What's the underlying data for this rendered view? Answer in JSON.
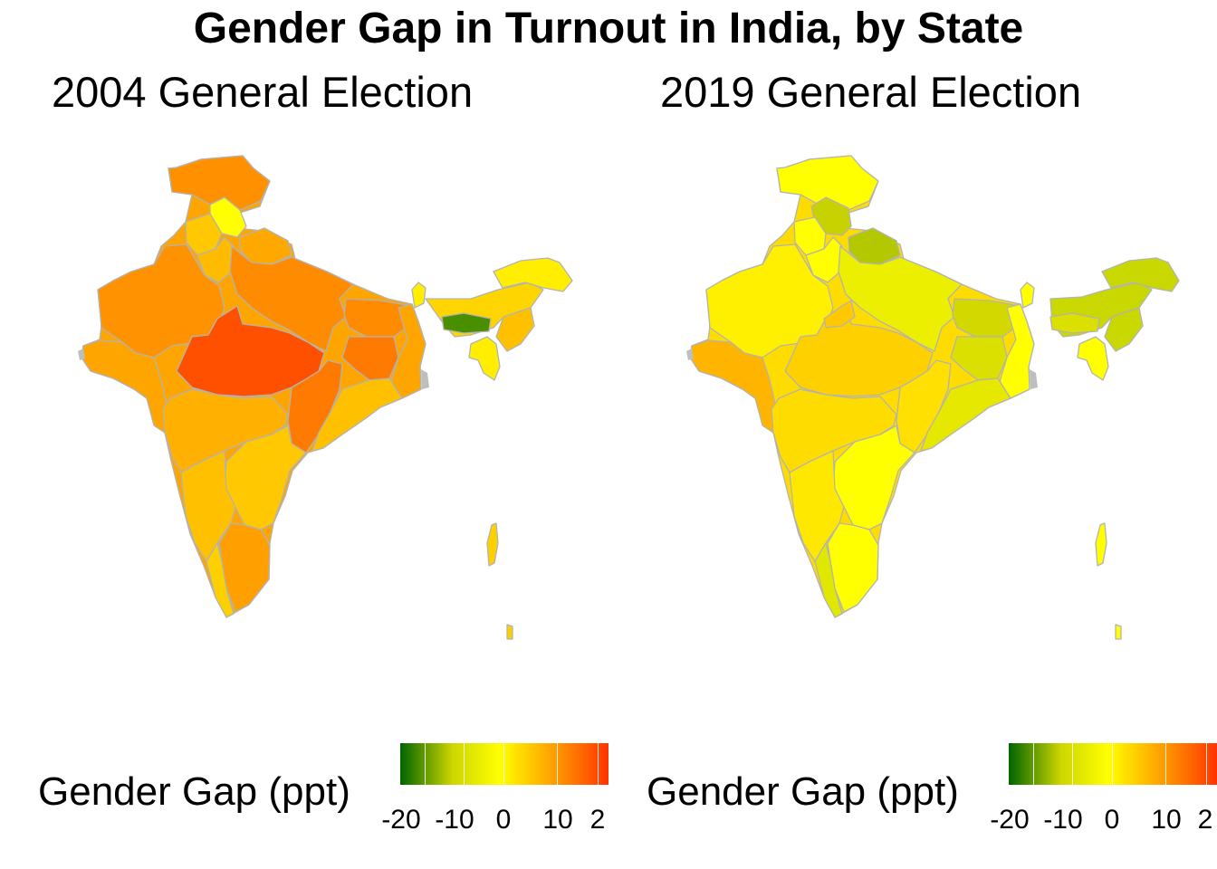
{
  "title": "Gender Gap in Turnout in India, by State",
  "panels": [
    {
      "title": "2004 General Election"
    },
    {
      "title": "2019 General Election"
    }
  ],
  "legend": {
    "title": "Gender Gap (ppt)",
    "ticks": [
      "-20",
      "-10",
      "0",
      "10",
      "2"
    ],
    "colors": [
      "#006400",
      "#cdd600",
      "#ffff00",
      "#ffa500",
      "#ff3300"
    ]
  },
  "colors": {
    "border": "#b3b3b3",
    "missing": "#bebebe"
  }
}
